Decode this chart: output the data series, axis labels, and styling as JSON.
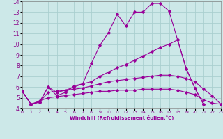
{
  "xlabel": "Windchill (Refroidissement éolien,°C)",
  "xlim": [
    0,
    23
  ],
  "ylim": [
    4,
    14
  ],
  "xticks": [
    0,
    1,
    2,
    3,
    4,
    5,
    6,
    7,
    8,
    9,
    10,
    11,
    12,
    13,
    14,
    15,
    16,
    17,
    18,
    19,
    20,
    21,
    22,
    23
  ],
  "yticks": [
    4,
    5,
    6,
    7,
    8,
    9,
    10,
    11,
    12,
    13,
    14
  ],
  "bg_color": "#cce8e8",
  "grid_color": "#aacfcf",
  "line_color": "#990099",
  "lines": [
    {
      "x": [
        0,
        1,
        2,
        3,
        4,
        5,
        6,
        7,
        8,
        9,
        10,
        11,
        12,
        13,
        14,
        15,
        16,
        17,
        18,
        19,
        20,
        21
      ],
      "y": [
        5.6,
        4.4,
        4.6,
        6.0,
        5.2,
        5.5,
        6.1,
        6.3,
        8.2,
        9.9,
        11.1,
        12.8,
        11.7,
        13.0,
        13.0,
        13.8,
        13.8,
        13.1,
        10.4,
        7.7,
        5.9,
        4.4
      ]
    },
    {
      "x": [
        0,
        1,
        2,
        3,
        4,
        5,
        6,
        7,
        8,
        9,
        10,
        11,
        12,
        13,
        14,
        15,
        16,
        17,
        18,
        19,
        20,
        21
      ],
      "y": [
        5.6,
        4.4,
        4.6,
        6.0,
        5.5,
        5.7,
        6.0,
        6.3,
        6.5,
        7.0,
        7.4,
        7.8,
        8.1,
        8.5,
        8.9,
        9.3,
        9.7,
        10.0,
        10.4,
        7.7,
        5.9,
        4.4
      ]
    },
    {
      "x": [
        0,
        1,
        2,
        3,
        4,
        5,
        6,
        7,
        8,
        9,
        10,
        11,
        12,
        13,
        14,
        15,
        16,
        17,
        18,
        19,
        20,
        21,
        22,
        23
      ],
      "y": [
        5.6,
        4.4,
        4.7,
        5.0,
        5.1,
        5.2,
        5.3,
        5.4,
        5.5,
        5.6,
        5.6,
        5.7,
        5.7,
        5.7,
        5.8,
        5.8,
        5.8,
        5.8,
        5.7,
        5.5,
        5.3,
        4.8,
        4.5,
        4.4
      ]
    },
    {
      "x": [
        0,
        1,
        2,
        3,
        4,
        5,
        6,
        7,
        8,
        9,
        10,
        11,
        12,
        13,
        14,
        15,
        16,
        17,
        18,
        19,
        20,
        21,
        22,
        23
      ],
      "y": [
        5.6,
        4.4,
        4.6,
        5.5,
        5.6,
        5.7,
        5.8,
        5.9,
        6.1,
        6.3,
        6.5,
        6.6,
        6.7,
        6.8,
        6.9,
        7.0,
        7.1,
        7.1,
        7.0,
        6.8,
        6.5,
        5.8,
        5.2,
        4.4
      ]
    }
  ]
}
